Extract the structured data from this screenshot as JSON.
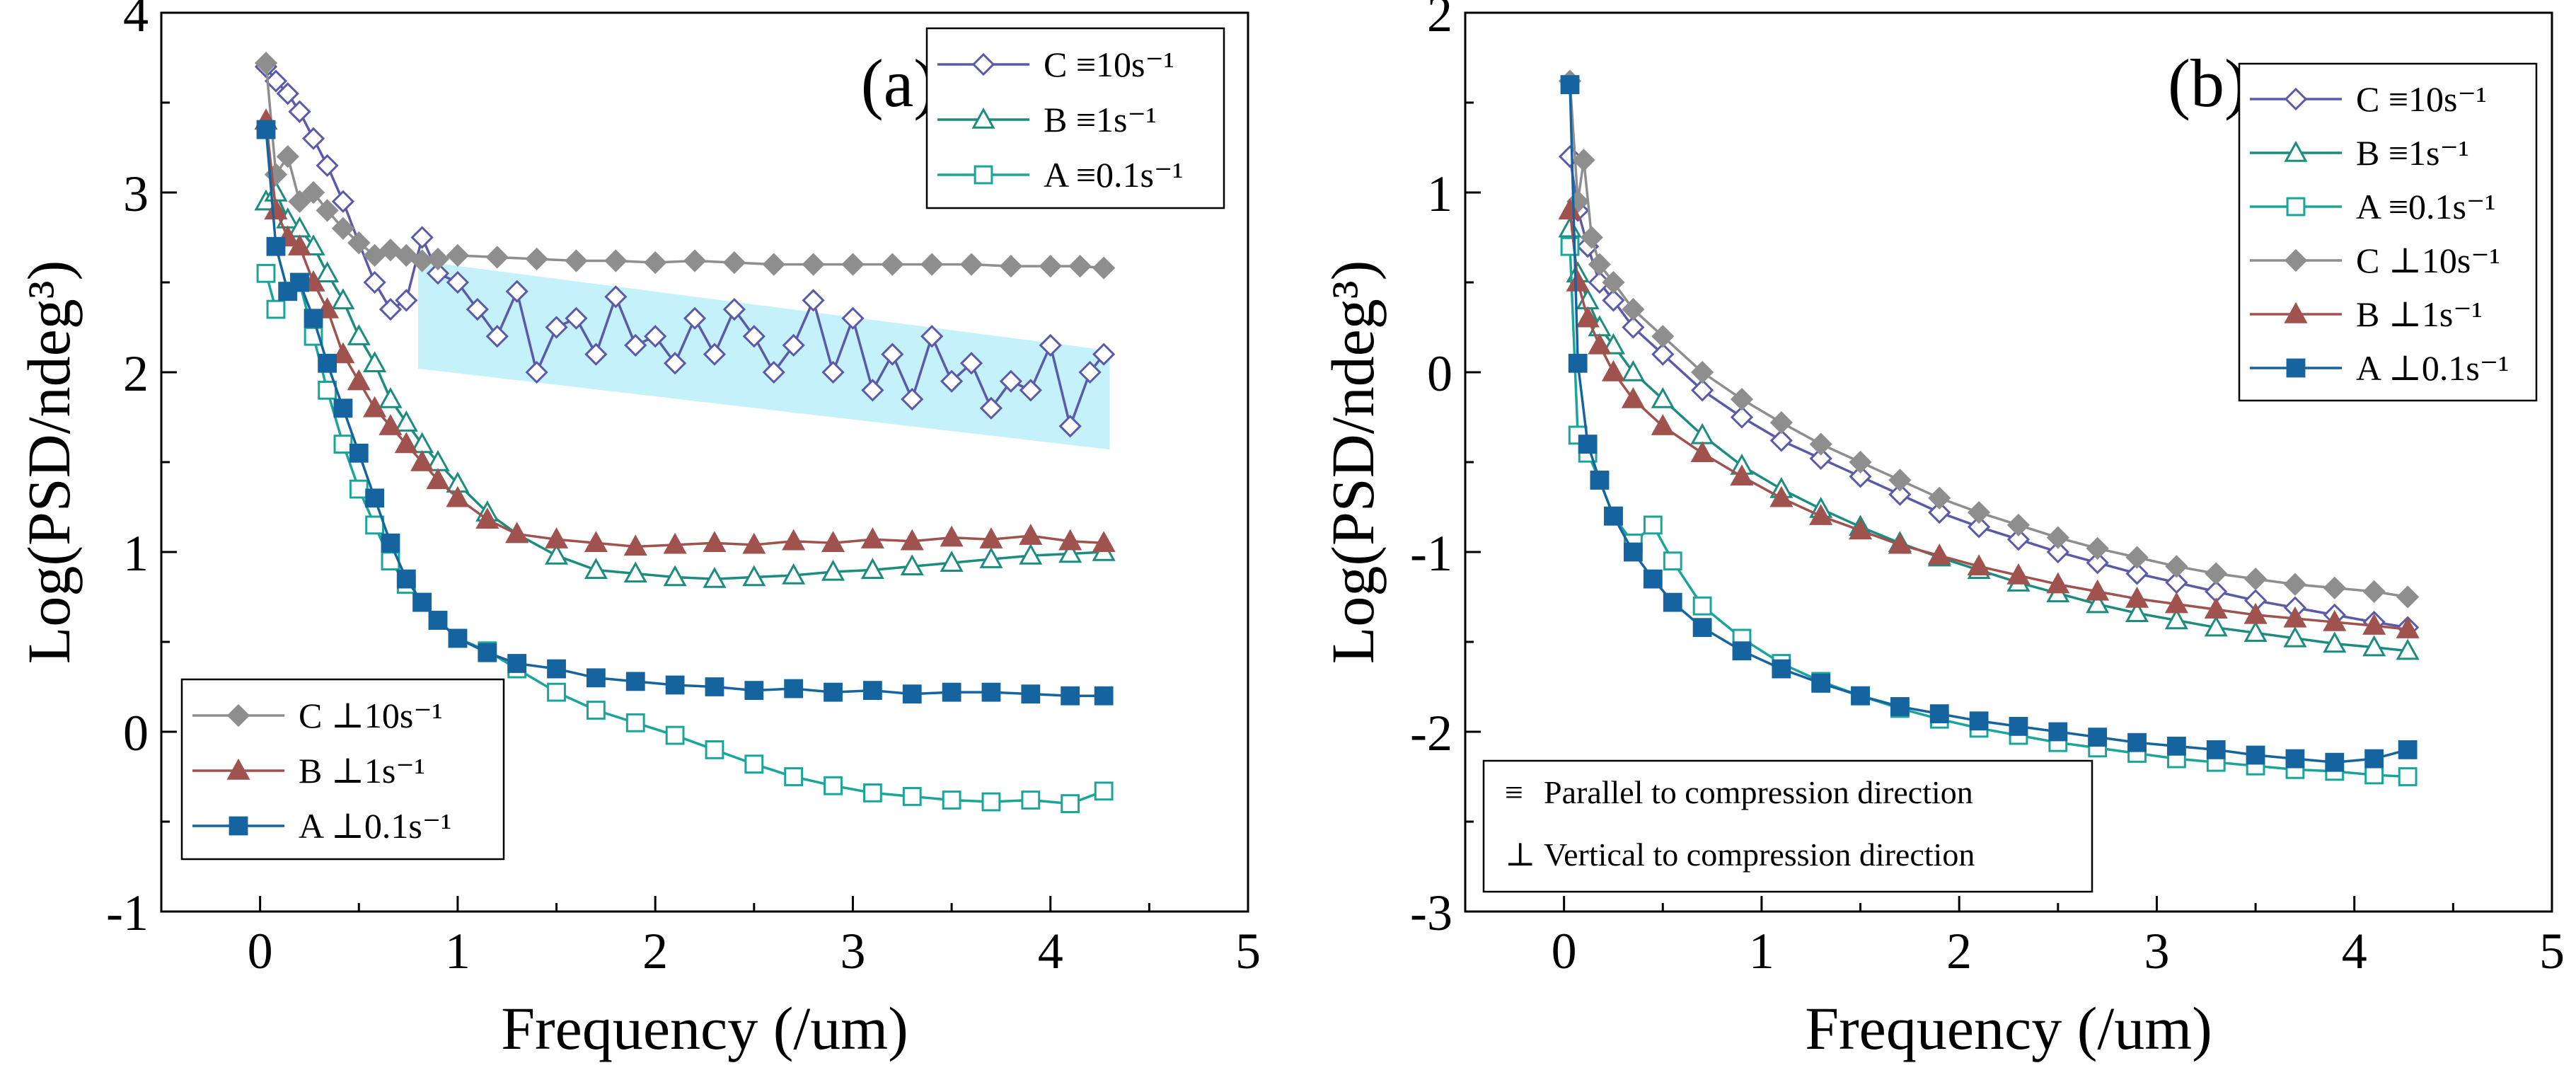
{
  "chart_data": [
    {
      "type": "line",
      "title": "(a)",
      "xlabel": "Frequency (/um)",
      "ylabel": "Log(PSD/ndeg³)",
      "xlim": [
        -0.5,
        5
      ],
      "ylim": [
        -1,
        4
      ],
      "xticks": [
        0,
        1,
        2,
        3,
        4,
        5
      ],
      "xtick_labels": [
        "0",
        "1",
        "2",
        "3",
        "4",
        "5"
      ],
      "yticks": [
        -1,
        0,
        1,
        2,
        3,
        4
      ],
      "ytick_labels": [
        "-1",
        "0",
        "1",
        "2",
        "3",
        "4"
      ],
      "grid": false,
      "band": {
        "x": [
          0.8,
          4.3
        ],
        "top": [
          2.62,
          2.12
        ],
        "bottom": [
          2.02,
          1.57
        ],
        "color": "#c5f1fb"
      },
      "legends": [
        {
          "position": "top-right",
          "entries": [
            "C ≡10s⁻¹",
            "B ≡1s⁻¹",
            "A ≡0.1s⁻¹"
          ]
        },
        {
          "position": "bottom-left",
          "entries": [
            "C ⊥10s⁻¹",
            "B ⊥1s⁻¹",
            "A ⊥0.1s⁻¹"
          ]
        }
      ],
      "series": [
        {
          "name": "C ≡10s⁻¹",
          "marker": "diamond-open",
          "color": "#5a5aa8",
          "x": [
            0.03,
            0.08,
            0.14,
            0.2,
            0.27,
            0.34,
            0.42,
            0.5,
            0.58,
            0.66,
            0.74,
            0.82,
            0.9,
            1.0,
            1.1,
            1.2,
            1.3,
            1.4,
            1.5,
            1.6,
            1.7,
            1.8,
            1.9,
            2.0,
            2.1,
            2.2,
            2.3,
            2.4,
            2.5,
            2.6,
            2.7,
            2.8,
            2.9,
            3.0,
            3.1,
            3.2,
            3.3,
            3.4,
            3.5,
            3.6,
            3.7,
            3.8,
            3.9,
            4.0,
            4.1,
            4.2,
            4.27
          ],
          "y": [
            3.7,
            3.62,
            3.55,
            3.45,
            3.3,
            3.15,
            2.95,
            2.72,
            2.5,
            2.35,
            2.4,
            2.75,
            2.55,
            2.5,
            2.35,
            2.2,
            2.45,
            2.0,
            2.25,
            2.3,
            2.1,
            2.42,
            2.15,
            2.2,
            2.05,
            2.3,
            2.1,
            2.35,
            2.2,
            2.0,
            2.15,
            2.4,
            2.0,
            2.3,
            1.9,
            2.1,
            1.85,
            2.2,
            1.95,
            2.05,
            1.8,
            1.95,
            1.9,
            2.15,
            1.7,
            2.0,
            2.1
          ]
        },
        {
          "name": "B ≡1s⁻¹",
          "marker": "triangle-open",
          "color": "#1b8c7e",
          "x": [
            0.03,
            0.08,
            0.14,
            0.2,
            0.27,
            0.34,
            0.42,
            0.5,
            0.58,
            0.66,
            0.74,
            0.82,
            0.9,
            1.0,
            1.15,
            1.3,
            1.5,
            1.7,
            1.9,
            2.1,
            2.3,
            2.5,
            2.7,
            2.9,
            3.1,
            3.3,
            3.5,
            3.7,
            3.9,
            4.1,
            4.27
          ],
          "y": [
            2.95,
            3.0,
            2.85,
            2.8,
            2.7,
            2.55,
            2.4,
            2.2,
            2.05,
            1.85,
            1.72,
            1.6,
            1.5,
            1.38,
            1.22,
            1.1,
            0.98,
            0.9,
            0.88,
            0.86,
            0.85,
            0.86,
            0.87,
            0.89,
            0.9,
            0.92,
            0.94,
            0.96,
            0.98,
            0.99,
            1.0
          ]
        },
        {
          "name": "A ≡0.1s⁻¹",
          "marker": "square-open",
          "color": "#1aa59a",
          "x": [
            0.03,
            0.08,
            0.14,
            0.2,
            0.27,
            0.34,
            0.42,
            0.5,
            0.58,
            0.66,
            0.74,
            0.82,
            0.9,
            1.0,
            1.15,
            1.3,
            1.5,
            1.7,
            1.9,
            2.1,
            2.3,
            2.5,
            2.7,
            2.9,
            3.1,
            3.3,
            3.5,
            3.7,
            3.9,
            4.1,
            4.27
          ],
          "y": [
            2.55,
            2.35,
            2.45,
            2.5,
            2.2,
            1.9,
            1.6,
            1.35,
            1.15,
            0.95,
            0.82,
            0.72,
            0.62,
            0.52,
            0.45,
            0.35,
            0.22,
            0.12,
            0.05,
            -0.02,
            -0.1,
            -0.18,
            -0.25,
            -0.3,
            -0.34,
            -0.36,
            -0.38,
            -0.39,
            -0.38,
            -0.4,
            -0.33
          ]
        },
        {
          "name": "C ⊥10s⁻¹",
          "marker": "diamond-filled",
          "color": "#8e8e8e",
          "x": [
            0.03,
            0.08,
            0.14,
            0.2,
            0.27,
            0.34,
            0.42,
            0.5,
            0.58,
            0.66,
            0.74,
            0.82,
            0.9,
            1.0,
            1.2,
            1.4,
            1.6,
            1.8,
            2.0,
            2.2,
            2.4,
            2.6,
            2.8,
            3.0,
            3.2,
            3.4,
            3.6,
            3.8,
            4.0,
            4.15,
            4.27
          ],
          "y": [
            3.72,
            3.1,
            3.2,
            2.95,
            3.0,
            2.9,
            2.8,
            2.72,
            2.65,
            2.68,
            2.65,
            2.62,
            2.63,
            2.65,
            2.64,
            2.63,
            2.62,
            2.62,
            2.61,
            2.62,
            2.61,
            2.6,
            2.6,
            2.6,
            2.6,
            2.6,
            2.6,
            2.59,
            2.59,
            2.59,
            2.58
          ]
        },
        {
          "name": "B ⊥1s⁻¹",
          "marker": "triangle-filled",
          "color": "#a0524e",
          "x": [
            0.03,
            0.08,
            0.14,
            0.2,
            0.27,
            0.34,
            0.42,
            0.5,
            0.58,
            0.66,
            0.74,
            0.82,
            0.9,
            1.0,
            1.15,
            1.3,
            1.5,
            1.7,
            1.9,
            2.1,
            2.3,
            2.5,
            2.7,
            2.9,
            3.1,
            3.3,
            3.5,
            3.7,
            3.9,
            4.1,
            4.27
          ],
          "y": [
            3.4,
            2.9,
            2.75,
            2.7,
            2.5,
            2.35,
            2.1,
            1.95,
            1.8,
            1.7,
            1.6,
            1.5,
            1.4,
            1.3,
            1.18,
            1.1,
            1.07,
            1.05,
            1.03,
            1.04,
            1.05,
            1.04,
            1.06,
            1.05,
            1.07,
            1.06,
            1.08,
            1.07,
            1.09,
            1.06,
            1.05
          ]
        },
        {
          "name": "A ⊥0.1s⁻¹",
          "marker": "square-filled",
          "color": "#1564a0",
          "x": [
            0.03,
            0.08,
            0.14,
            0.2,
            0.27,
            0.34,
            0.42,
            0.5,
            0.58,
            0.66,
            0.74,
            0.82,
            0.9,
            1.0,
            1.15,
            1.3,
            1.5,
            1.7,
            1.9,
            2.1,
            2.3,
            2.5,
            2.7,
            2.9,
            3.1,
            3.3,
            3.5,
            3.7,
            3.9,
            4.1,
            4.27
          ],
          "y": [
            3.35,
            2.7,
            2.45,
            2.5,
            2.3,
            2.05,
            1.8,
            1.55,
            1.3,
            1.05,
            0.85,
            0.72,
            0.62,
            0.52,
            0.44,
            0.38,
            0.35,
            0.3,
            0.28,
            0.26,
            0.25,
            0.23,
            0.24,
            0.22,
            0.23,
            0.21,
            0.22,
            0.22,
            0.21,
            0.2,
            0.2
          ]
        }
      ]
    },
    {
      "type": "line",
      "title": "(b)",
      "xlabel": "Frequency (/um)",
      "ylabel": "Log(PSD/ndeg³)",
      "xlim": [
        -0.5,
        5
      ],
      "ylim": [
        -3,
        2
      ],
      "xticks": [
        0,
        1,
        2,
        3,
        4,
        5
      ],
      "xtick_labels": [
        "0",
        "1",
        "2",
        "3",
        "4",
        "5"
      ],
      "yticks": [
        -3,
        -2,
        -1,
        0,
        1,
        2
      ],
      "ytick_labels": [
        "-3",
        "-2",
        "-1",
        "0",
        "1",
        "2"
      ],
      "grid": false,
      "legends": [
        {
          "position": "top-right",
          "entries": [
            "C ≡10s⁻¹",
            "B ≡1s⁻¹",
            "A ≡0.1s⁻¹",
            "C ⊥10s⁻¹",
            "B ⊥1s⁻¹",
            "A ⊥0.1s⁻¹"
          ]
        }
      ],
      "annotations": [
        {
          "symbol": "≡",
          "text": "Parallel to compression direction"
        },
        {
          "symbol": "⊥",
          "text": "Vertical to compression direction"
        }
      ],
      "series": [
        {
          "name": "C ≡10s⁻¹",
          "marker": "diamond-open",
          "color": "#5a5aa8",
          "x": [
            0.03,
            0.07,
            0.12,
            0.18,
            0.25,
            0.35,
            0.5,
            0.7,
            0.9,
            1.1,
            1.3,
            1.5,
            1.7,
            1.9,
            2.1,
            2.3,
            2.5,
            2.7,
            2.9,
            3.1,
            3.3,
            3.5,
            3.7,
            3.9,
            4.1,
            4.27
          ],
          "y": [
            1.2,
            0.9,
            0.7,
            0.5,
            0.4,
            0.25,
            0.1,
            -0.1,
            -0.25,
            -0.38,
            -0.48,
            -0.58,
            -0.68,
            -0.78,
            -0.86,
            -0.93,
            -1.0,
            -1.06,
            -1.12,
            -1.17,
            -1.22,
            -1.27,
            -1.31,
            -1.35,
            -1.39,
            -1.42
          ]
        },
        {
          "name": "B ≡1s⁻¹",
          "marker": "triangle-open",
          "color": "#1b8c7e",
          "x": [
            0.03,
            0.07,
            0.12,
            0.18,
            0.25,
            0.35,
            0.5,
            0.7,
            0.9,
            1.1,
            1.3,
            1.5,
            1.7,
            1.9,
            2.1,
            2.3,
            2.5,
            2.7,
            2.9,
            3.1,
            3.3,
            3.5,
            3.7,
            3.9,
            4.1,
            4.27
          ],
          "y": [
            0.8,
            0.55,
            0.4,
            0.25,
            0.15,
            0.0,
            -0.15,
            -0.35,
            -0.52,
            -0.65,
            -0.76,
            -0.86,
            -0.95,
            -1.03,
            -1.1,
            -1.17,
            -1.23,
            -1.29,
            -1.34,
            -1.38,
            -1.42,
            -1.45,
            -1.48,
            -1.51,
            -1.53,
            -1.55
          ]
        },
        {
          "name": "A ≡0.1s⁻¹",
          "marker": "square-open",
          "color": "#1aa59a",
          "x": [
            0.03,
            0.07,
            0.12,
            0.18,
            0.25,
            0.35,
            0.45,
            0.55,
            0.7,
            0.9,
            1.1,
            1.3,
            1.5,
            1.7,
            1.9,
            2.1,
            2.3,
            2.5,
            2.7,
            2.9,
            3.1,
            3.3,
            3.5,
            3.7,
            3.9,
            4.1,
            4.27
          ],
          "y": [
            0.7,
            -0.35,
            -0.45,
            -0.6,
            -0.8,
            -0.95,
            -0.85,
            -1.05,
            -1.3,
            -1.48,
            -1.62,
            -1.72,
            -1.8,
            -1.87,
            -1.93,
            -1.98,
            -2.02,
            -2.06,
            -2.09,
            -2.12,
            -2.15,
            -2.17,
            -2.19,
            -2.21,
            -2.22,
            -2.24,
            -2.25
          ]
        },
        {
          "name": "C ⊥10s⁻¹",
          "marker": "diamond-filled",
          "color": "#8e8e8e",
          "x": [
            0.03,
            0.07,
            0.1,
            0.14,
            0.18,
            0.25,
            0.35,
            0.5,
            0.7,
            0.9,
            1.1,
            1.3,
            1.5,
            1.7,
            1.9,
            2.1,
            2.3,
            2.5,
            2.7,
            2.9,
            3.1,
            3.3,
            3.5,
            3.7,
            3.9,
            4.1,
            4.27
          ],
          "y": [
            1.62,
            0.95,
            1.18,
            0.75,
            0.6,
            0.5,
            0.35,
            0.2,
            0.0,
            -0.15,
            -0.28,
            -0.4,
            -0.5,
            -0.6,
            -0.7,
            -0.78,
            -0.85,
            -0.92,
            -0.98,
            -1.03,
            -1.08,
            -1.12,
            -1.15,
            -1.18,
            -1.2,
            -1.22,
            -1.25
          ]
        },
        {
          "name": "B ⊥1s⁻¹",
          "marker": "triangle-filled",
          "color": "#a0524e",
          "x": [
            0.03,
            0.07,
            0.12,
            0.18,
            0.25,
            0.35,
            0.5,
            0.7,
            0.9,
            1.1,
            1.3,
            1.5,
            1.7,
            1.9,
            2.1,
            2.3,
            2.5,
            2.7,
            2.9,
            3.1,
            3.3,
            3.5,
            3.7,
            3.9,
            4.1,
            4.27
          ],
          "y": [
            0.9,
            0.5,
            0.3,
            0.15,
            0.0,
            -0.15,
            -0.3,
            -0.45,
            -0.58,
            -0.7,
            -0.8,
            -0.88,
            -0.96,
            -1.02,
            -1.08,
            -1.13,
            -1.18,
            -1.22,
            -1.26,
            -1.29,
            -1.32,
            -1.35,
            -1.37,
            -1.39,
            -1.41,
            -1.43
          ]
        },
        {
          "name": "A ⊥0.1s⁻¹",
          "marker": "square-filled",
          "color": "#1564a0",
          "x": [
            0.03,
            0.07,
            0.12,
            0.18,
            0.25,
            0.35,
            0.45,
            0.55,
            0.7,
            0.9,
            1.1,
            1.3,
            1.5,
            1.7,
            1.9,
            2.1,
            2.3,
            2.5,
            2.7,
            2.9,
            3.1,
            3.3,
            3.5,
            3.7,
            3.9,
            4.1,
            4.27
          ],
          "y": [
            1.6,
            0.05,
            -0.4,
            -0.6,
            -0.8,
            -1.0,
            -1.15,
            -1.28,
            -1.42,
            -1.55,
            -1.65,
            -1.73,
            -1.8,
            -1.86,
            -1.9,
            -1.94,
            -1.97,
            -2.0,
            -2.03,
            -2.06,
            -2.08,
            -2.1,
            -2.13,
            -2.15,
            -2.17,
            -2.15,
            -2.1
          ]
        }
      ]
    }
  ]
}
